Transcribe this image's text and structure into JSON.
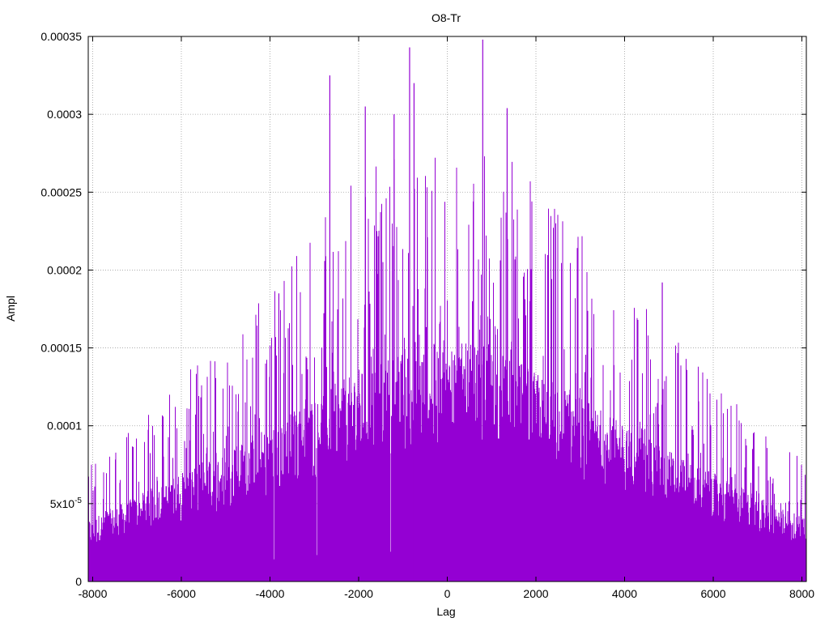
{
  "chart_data": {
    "type": "bar",
    "title": "O8-Tr",
    "xlabel": "Lag",
    "ylabel": "Ampl",
    "xlim": [
      -8100,
      8100
    ],
    "ylim": [
      0,
      0.00035
    ],
    "grid": true,
    "legend": "none",
    "color": "#9400d3",
    "x_ticks": [
      {
        "value": -8000,
        "label": "-8000"
      },
      {
        "value": -6000,
        "label": "-6000"
      },
      {
        "value": -4000,
        "label": "-4000"
      },
      {
        "value": -2000,
        "label": "-2000"
      },
      {
        "value": 0,
        "label": "0"
      },
      {
        "value": 2000,
        "label": "2000"
      },
      {
        "value": 4000,
        "label": "4000"
      },
      {
        "value": 6000,
        "label": "6000"
      },
      {
        "value": 8000,
        "label": "8000"
      }
    ],
    "y_ticks": [
      {
        "value": 0,
        "label": "0"
      },
      {
        "value": 5e-05,
        "label": "5x10",
        "exp": "-5"
      },
      {
        "value": 0.0001,
        "label": "0.0001"
      },
      {
        "value": 0.00015,
        "label": "0.00015"
      },
      {
        "value": 0.0002,
        "label": "0.0002"
      },
      {
        "value": 0.00025,
        "label": "0.00025"
      },
      {
        "value": 0.0003,
        "label": "0.0003"
      },
      {
        "value": 0.00035,
        "label": "0.00035"
      }
    ],
    "envelope": {
      "x": [
        -8100,
        -7000,
        -6000,
        -5000,
        -4000,
        -3000,
        -2000,
        -1000,
        0,
        1000,
        2000,
        3000,
        4000,
        5000,
        6000,
        7000,
        8100
      ],
      "dense_top": [
        4e-05,
        5.5e-05,
        7e-05,
        8.5e-05,
        0.0001,
        0.00012,
        0.000135,
        0.00015,
        0.000155,
        0.00015,
        0.000135,
        0.00012,
        0.0001,
        8.5e-05,
        7e-05,
        5.5e-05,
        4e-05
      ],
      "spike_max": [
        8e-05,
        0.0001,
        0.00013,
        0.00016,
        0.00019,
        0.00023,
        0.00026,
        0.00028,
        0.00029,
        0.00028,
        0.00026,
        0.00023,
        0.00019,
        0.00016,
        0.00013,
        0.0001,
        8e-05
      ]
    },
    "peaks": [
      {
        "x": -2650,
        "y": 0.000325
      },
      {
        "x": -1850,
        "y": 0.000305
      },
      {
        "x": -1200,
        "y": 0.0003
      },
      {
        "x": -850,
        "y": 0.000343
      },
      {
        "x": -750,
        "y": 0.00032
      },
      {
        "x": 800,
        "y": 0.000348
      },
      {
        "x": 1350,
        "y": 0.000304
      },
      {
        "x": -3800,
        "y": 0.000185
      },
      {
        "x": 4850,
        "y": 0.000192
      }
    ]
  }
}
